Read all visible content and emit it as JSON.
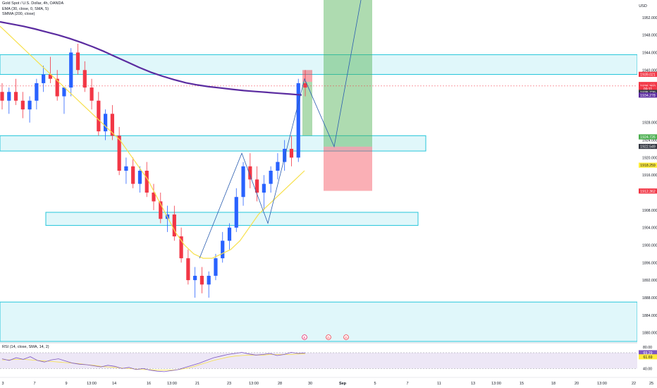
{
  "legend": {
    "title": "Gold Spot / U.S. Dollar, 4h, OANDA",
    "ema": "EMA (30, close, 0, SMA, 5)",
    "smma": "SMMA (200, close)"
  },
  "rsi_legend": "RSI (14, close, SMA, 14, 2)",
  "price_axis": {
    "unit": "USD",
    "ticks": [
      "1952.000",
      "1948.000",
      "1944.000",
      "1940.000",
      "1928.000",
      "1924.000",
      "1920.000",
      "1916.000",
      "1908.000",
      "1904.000",
      "1900.000",
      "1896.000",
      "1892.000",
      "1888.000",
      "1884.000",
      "1880.000"
    ],
    "tick_values": [
      1952,
      1948,
      1944,
      1940,
      1928,
      1924,
      1920,
      1916,
      1908,
      1904,
      1900,
      1896,
      1892,
      1888,
      1884,
      1880
    ],
    "badges": [
      {
        "label": "1939.021",
        "value": 1939.02,
        "color": "#f23645"
      },
      {
        "label": "XAUUSD",
        "value": 1936.7,
        "color": "#f23645"
      },
      {
        "label": "1936.360",
        "value": 1936.36,
        "color": "#f23645"
      },
      {
        "label": "09:11",
        "value": 1935.7,
        "color": "#f23645"
      },
      {
        "label": "1935.7?9",
        "value": 1934.9,
        "color": "#363a45"
      },
      {
        "label": "1934.278",
        "value": 1934.28,
        "color": "#5b2ca0"
      },
      {
        "label": "1924.726",
        "value": 1924.73,
        "color": "#4caf50"
      },
      {
        "label": "1922.549",
        "value": 1922.55,
        "color": "#363a45"
      },
      {
        "label": "1918.259",
        "value": 1918.26,
        "color": "#ffeb3b",
        "text": "#131722"
      },
      {
        "label": "1912.362",
        "value": 1912.36,
        "color": "#f23645"
      }
    ]
  },
  "rsi_axis": {
    "ticks": [
      "80.00",
      "69.29",
      "61.69",
      "40.00"
    ],
    "tick_values": [
      80,
      69.29,
      61.69,
      40
    ],
    "badges": [
      {
        "label": "69.29",
        "value": 69.29,
        "color": "#7e57c2"
      },
      {
        "label": "61.69",
        "value": 61.69,
        "color": "#ffeb3b",
        "text": "#131722"
      }
    ]
  },
  "time_axis": {
    "labels": [
      "3",
      "7",
      "9",
      "13:00",
      "14",
      "16",
      "13:00",
      "21",
      "23",
      "13:00",
      "28",
      "30",
      "Sep",
      "5",
      "7",
      "11",
      "13",
      "13:00",
      "15",
      "18",
      "20",
      "13:00",
      "22",
      "25",
      "27"
    ]
  },
  "events": [
    "E",
    "D",
    "D"
  ],
  "chart_data": {
    "type": "candlestick",
    "title": "Gold Spot / U.S. Dollar, 4h, OANDA",
    "ylim": [
      1878,
      1956
    ],
    "series": [
      {
        "name": "EMA (30, close, 0, SMA, 5)",
        "color": "#f7e04b",
        "values": [
          1950,
          1948,
          1946,
          1944,
          1942,
          1940,
          1938,
          1936,
          1934,
          1932,
          1930,
          1928,
          1926,
          1924,
          1921,
          1918,
          1915,
          1911,
          1907,
          1903,
          1900,
          1898,
          1897,
          1897,
          1898,
          1899,
          1901,
          1904,
          1907,
          1909,
          1911,
          1913,
          1915,
          1917
        ]
      },
      {
        "name": "SMMA (200, close)",
        "color": "#5b2ca0",
        "values": [
          1951,
          1950.5,
          1950,
          1949.4,
          1948.7,
          1948,
          1947.2,
          1946.3,
          1945.3,
          1944.2,
          1943,
          1941.8,
          1940.6,
          1939.5,
          1938.6,
          1937.8,
          1937.1,
          1936.6,
          1936.2,
          1935.9,
          1935.6,
          1935.3,
          1935.1,
          1934.9,
          1934.7,
          1934.5,
          1934.3
        ]
      }
    ],
    "candles": [
      [
        1935,
        1937,
        1931,
        1933
      ],
      [
        1933,
        1936,
        1930,
        1935
      ],
      [
        1935,
        1938,
        1932,
        1933
      ],
      [
        1933,
        1935,
        1929,
        1931
      ],
      [
        1931,
        1934,
        1928,
        1933
      ],
      [
        1933,
        1938,
        1931,
        1937
      ],
      [
        1937,
        1941,
        1935,
        1939
      ],
      [
        1939,
        1943,
        1937,
        1938
      ],
      [
        1938,
        1940,
        1933,
        1934
      ],
      [
        1934,
        1936,
        1930,
        1936
      ],
      [
        1936,
        1945,
        1934,
        1944
      ],
      [
        1944,
        1946,
        1939,
        1940
      ],
      [
        1940,
        1942,
        1935,
        1936
      ],
      [
        1936,
        1938,
        1931,
        1933
      ],
      [
        1933,
        1935,
        1925,
        1926
      ],
      [
        1926,
        1931,
        1924,
        1930
      ],
      [
        1930,
        1932,
        1924,
        1925
      ],
      [
        1925,
        1927,
        1916,
        1917
      ],
      [
        1917,
        1920,
        1914,
        1918
      ],
      [
        1918,
        1920,
        1913,
        1914
      ],
      [
        1914,
        1918,
        1912,
        1917
      ],
      [
        1917,
        1919,
        1911,
        1912
      ],
      [
        1912,
        1914,
        1908,
        1910
      ],
      [
        1910,
        1912,
        1905,
        1906
      ],
      [
        1906,
        1909,
        1903,
        1907
      ],
      [
        1907,
        1909,
        1901,
        1902
      ],
      [
        1902,
        1904,
        1896,
        1897
      ],
      [
        1897,
        1899,
        1891,
        1892
      ],
      [
        1892,
        1895,
        1888,
        1893
      ],
      [
        1893,
        1895,
        1889,
        1891
      ],
      [
        1891,
        1894,
        1888,
        1893
      ],
      [
        1893,
        1898,
        1892,
        1897
      ],
      [
        1897,
        1903,
        1896,
        1901
      ],
      [
        1901,
        1905,
        1899,
        1904
      ],
      [
        1904,
        1913,
        1903,
        1911
      ],
      [
        1911,
        1919,
        1909,
        1918
      ],
      [
        1918,
        1921,
        1913,
        1915
      ],
      [
        1915,
        1918,
        1910,
        1912
      ],
      [
        1912,
        1916,
        1908,
        1914
      ],
      [
        1914,
        1918,
        1912,
        1917
      ],
      [
        1917,
        1921,
        1915,
        1919
      ],
      [
        1919,
        1924,
        1917,
        1922
      ],
      [
        1922,
        1925,
        1918,
        1920
      ],
      [
        1920,
        1938,
        1919,
        1937
      ],
      [
        1937,
        1940,
        1934,
        1936
      ]
    ],
    "zones": [
      {
        "name": "resistance",
        "top": 1943.5,
        "bottom": 1939
      },
      {
        "name": "support-1",
        "top": 1925,
        "bottom": 1921.5
      },
      {
        "name": "support-2",
        "top": 1907.5,
        "bottom": 1904.5
      },
      {
        "name": "lower",
        "top": 1887,
        "bottom": 1878
      }
    ],
    "position": {
      "entry": 1922.5,
      "target": 1956,
      "stop": 1912.4
    },
    "rsi": {
      "ylim": [
        30,
        85
      ],
      "level_high": 69.29,
      "level_low": 40,
      "latest": 69.29,
      "ma": 61.69
    }
  }
}
